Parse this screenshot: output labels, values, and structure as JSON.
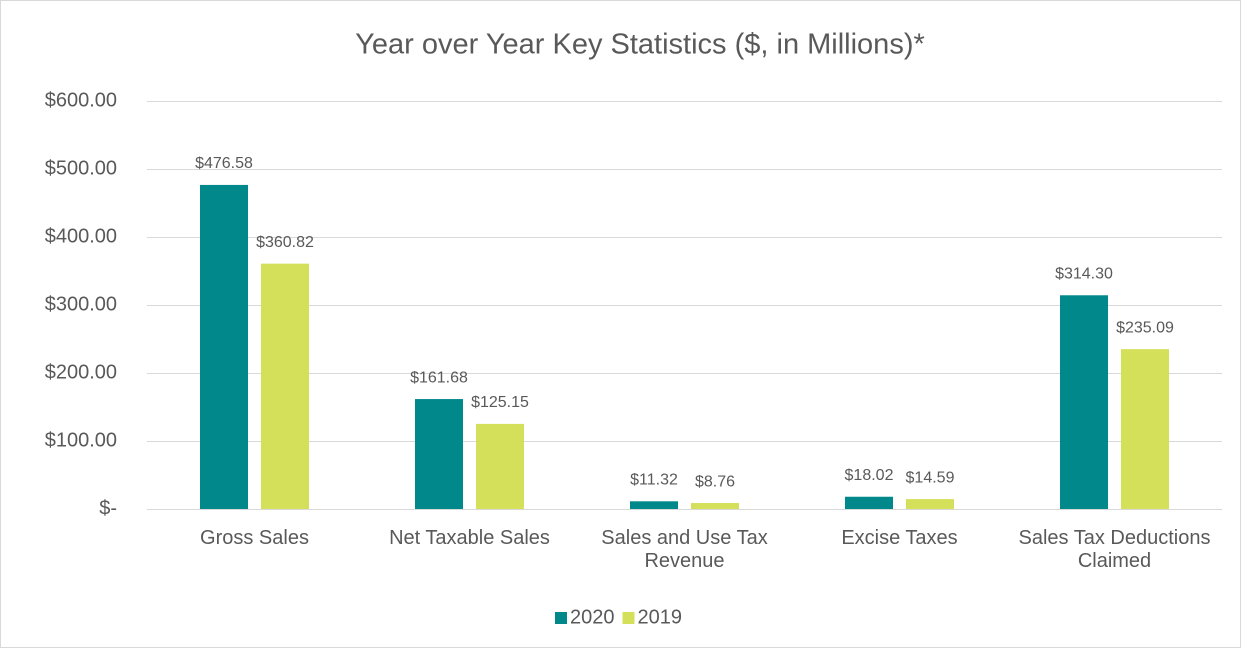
{
  "chart_data": {
    "type": "bar",
    "title": "Year over Year Key Statistics ($, in Millions)*",
    "categories": [
      "Gross Sales",
      "Net Taxable Sales",
      "Sales and Use Tax Revenue",
      "Excise Taxes",
      "Sales Tax Deductions Claimed"
    ],
    "series": [
      {
        "name": "2020",
        "color": "#00888a",
        "values": [
          476.58,
          161.68,
          11.32,
          18.02,
          314.3
        ],
        "value_labels": [
          "$476.58",
          "$161.68",
          "$11.32",
          "$18.02",
          "$314.30"
        ]
      },
      {
        "name": "2019",
        "color": "#d4df5a",
        "values": [
          360.82,
          125.15,
          8.76,
          14.59,
          235.09
        ],
        "value_labels": [
          "$360.82",
          "$125.15",
          "$8.76",
          "$14.59",
          "$235.09"
        ]
      }
    ],
    "ylim": [
      0,
      600
    ],
    "yticks": [
      {
        "value": 0,
        "label": "$-"
      },
      {
        "value": 100,
        "label": "$100.00"
      },
      {
        "value": 200,
        "label": "$200.00"
      },
      {
        "value": 300,
        "label": "$300.00"
      },
      {
        "value": 400,
        "label": "$400.00"
      },
      {
        "value": 500,
        "label": "$500.00"
      },
      {
        "value": 600,
        "label": "$600.00"
      }
    ],
    "grid": true,
    "legend": "bottom"
  }
}
